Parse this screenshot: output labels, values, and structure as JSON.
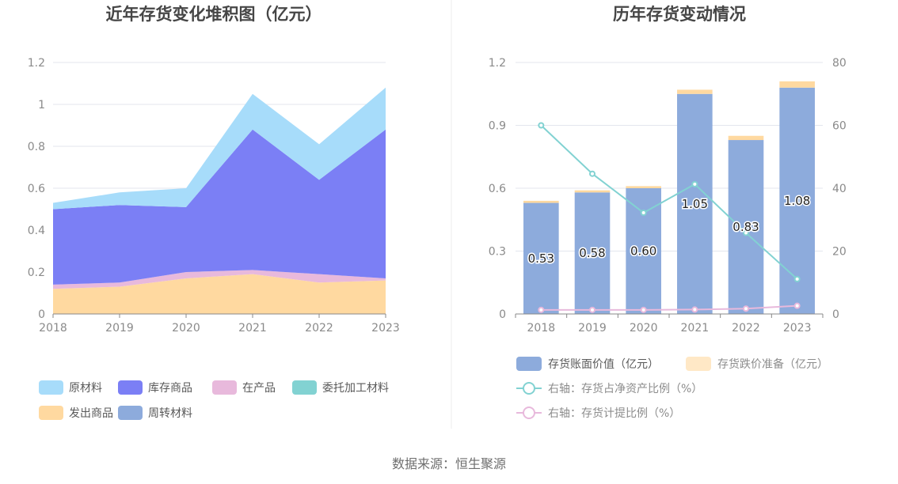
{
  "source": "数据来源：恒生聚源",
  "colors": {
    "raw_material": "#a7dcfa",
    "inventory_goods": "#7b7ff5",
    "wip": "#e8b9dc",
    "consignment": "#82d2d2",
    "shipped_goods": "#ffd9a0",
    "turnover_material": "#8dabdc",
    "bar_book": "#8dabdc",
    "bar_provision": "#ffd9a0",
    "line_ratio": "#82d2d2",
    "line_provision": "#e8b9dc"
  },
  "chart_data": [
    {
      "type": "area",
      "title": "近年存货变化堆积图（亿元）",
      "x": [
        "2018",
        "2019",
        "2020",
        "2021",
        "2022",
        "2023"
      ],
      "y_ticks": [
        "0",
        "0.2",
        "0.4",
        "0.6",
        "0.8",
        "1",
        "1.2"
      ],
      "ylim": [
        0,
        1.2
      ],
      "stacked": true,
      "legend": "bottom",
      "grid": true,
      "series": [
        {
          "name": "发出商品",
          "color_key": "shipped_goods",
          "values": [
            0.12,
            0.13,
            0.17,
            0.19,
            0.15,
            0.16
          ]
        },
        {
          "name": "在产品",
          "color_key": "wip",
          "values": [
            0.02,
            0.02,
            0.03,
            0.02,
            0.04,
            0.01
          ]
        },
        {
          "name": "库存商品",
          "color_key": "inventory_goods",
          "values": [
            0.36,
            0.37,
            0.31,
            0.67,
            0.45,
            0.71
          ]
        },
        {
          "name": "原材料",
          "color_key": "raw_material",
          "values": [
            0.03,
            0.06,
            0.09,
            0.17,
            0.17,
            0.2
          ]
        },
        {
          "name": "委托加工材料",
          "color_key": "consignment",
          "values": [
            0,
            0,
            0,
            0,
            0,
            0
          ]
        },
        {
          "name": "周转材料",
          "color_key": "turnover_material",
          "values": [
            0,
            0,
            0,
            0,
            0,
            0
          ]
        }
      ],
      "legend_rows": [
        [
          "原材料",
          "库存商品",
          "在产品",
          "委托加工材料"
        ],
        [
          "发出商品",
          "周转材料"
        ]
      ]
    },
    {
      "type": "bar",
      "title": "历年存货变动情况",
      "categories": [
        "2018",
        "2019",
        "2020",
        "2021",
        "2022",
        "2023"
      ],
      "y_left_ticks": [
        "0",
        "0.3",
        "0.6",
        "0.9",
        "1.2"
      ],
      "y_right_ticks": [
        "0",
        "20",
        "40",
        "60",
        "80"
      ],
      "ylim_left": [
        0,
        1.2
      ],
      "ylim_right": [
        0,
        80
      ],
      "stacked": true,
      "legend": "bottom",
      "grid": true,
      "series": [
        {
          "name": "存货账面价值（亿元）",
          "kind": "bar",
          "color_key": "bar_book",
          "values": [
            0.53,
            0.58,
            0.6,
            1.05,
            0.83,
            1.08
          ],
          "data_labels": [
            "0.53",
            "0.58",
            "0.60",
            "1.05",
            "0.83",
            "1.08"
          ]
        },
        {
          "name": "存货跌价准备（亿元）",
          "kind": "bar",
          "color_key": "bar_provision",
          "values": [
            0.01,
            0.01,
            0.01,
            0.02,
            0.02,
            0.03
          ]
        },
        {
          "name": "右轴：存货占净资产比例（%）",
          "kind": "line",
          "axis": "right",
          "color_key": "line_ratio",
          "values": [
            60.0,
            44.6,
            32.2,
            41.3,
            25.8,
            11.1
          ]
        },
        {
          "name": "右轴：存货计提比例（%）",
          "kind": "line",
          "axis": "right",
          "color_key": "line_provision",
          "values": [
            1.3,
            1.3,
            1.3,
            1.4,
            1.7,
            2.6
          ]
        }
      ]
    }
  ]
}
